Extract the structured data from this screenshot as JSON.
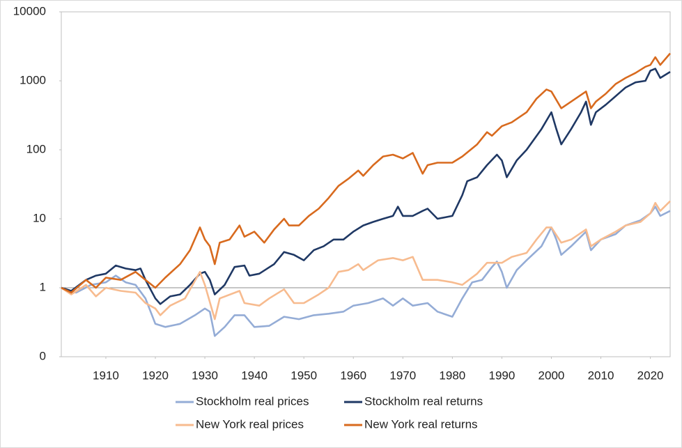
{
  "chart_data": {
    "type": "line",
    "log_scale_y": true,
    "reference_line": 1,
    "xlim": [
      1901,
      2024
    ],
    "xticks": [
      1910,
      1920,
      1930,
      1940,
      1950,
      1960,
      1970,
      1980,
      1990,
      2000,
      2010,
      2020
    ],
    "ylim": [
      0.1,
      10000
    ],
    "yticks": [
      {
        "value": 0.1,
        "label": "0"
      },
      1,
      10,
      100,
      1000,
      10000
    ],
    "series": [
      {
        "name": "Stockholm real prices",
        "color": "#94acd6",
        "x": [
          1901,
          1904,
          1907,
          1910,
          1912,
          1914,
          1916,
          1918,
          1920,
          1922,
          1925,
          1928,
          1930,
          1931,
          1932,
          1934,
          1936,
          1938,
          1940,
          1943,
          1946,
          1949,
          1952,
          1955,
          1958,
          1960,
          1963,
          1966,
          1968,
          1970,
          1972,
          1975,
          1977,
          1980,
          1982,
          1984,
          1986,
          1988,
          1989,
          1990,
          1991,
          1993,
          1995,
          1998,
          2000,
          2001,
          2002,
          2004,
          2007,
          2008,
          2010,
          2013,
          2015,
          2018,
          2020,
          2021,
          2022,
          2024
        ],
        "values": [
          1,
          0.85,
          1.1,
          1.2,
          1.5,
          1.2,
          1.1,
          0.7,
          0.3,
          0.27,
          0.3,
          0.4,
          0.5,
          0.45,
          0.2,
          0.27,
          0.4,
          0.4,
          0.27,
          0.28,
          0.38,
          0.35,
          0.4,
          0.42,
          0.45,
          0.55,
          0.6,
          0.7,
          0.55,
          0.7,
          0.55,
          0.6,
          0.45,
          0.38,
          0.7,
          1.2,
          1.3,
          2.0,
          2.4,
          1.7,
          1.0,
          1.8,
          2.5,
          4.0,
          7.5,
          5,
          3,
          4,
          6.5,
          3.5,
          5,
          6,
          8,
          9.5,
          12,
          15,
          11,
          13
        ]
      },
      {
        "name": "Stockholm real returns",
        "color": "#1f3864",
        "x": [
          1901,
          1903,
          1906,
          1908,
          1910,
          1912,
          1914,
          1916,
          1917,
          1918,
          1920,
          1921,
          1923,
          1925,
          1927,
          1929,
          1930,
          1931,
          1932,
          1934,
          1936,
          1938,
          1939,
          1941,
          1944,
          1946,
          1948,
          1950,
          1952,
          1954,
          1956,
          1958,
          1960,
          1962,
          1964,
          1966,
          1968,
          1969,
          1970,
          1972,
          1974,
          1975,
          1977,
          1980,
          1982,
          1983,
          1985,
          1987,
          1989,
          1990,
          1991,
          1993,
          1995,
          1998,
          2000,
          2001,
          2002,
          2004,
          2006,
          2007,
          2008,
          2009,
          2011,
          2013,
          2015,
          2017,
          2019,
          2020,
          2021,
          2022,
          2024
        ],
        "values": [
          1,
          0.9,
          1.3,
          1.5,
          1.6,
          2.1,
          1.9,
          1.8,
          1.9,
          1.3,
          0.7,
          0.58,
          0.75,
          0.8,
          1.1,
          1.6,
          1.7,
          1.3,
          0.8,
          1.1,
          2.0,
          2.1,
          1.5,
          1.6,
          2.2,
          3.3,
          3.0,
          2.5,
          3.5,
          4.0,
          5,
          5,
          6.5,
          8,
          9,
          10,
          11,
          15,
          11,
          11,
          13,
          14,
          10,
          11,
          22,
          35,
          40,
          60,
          85,
          70,
          40,
          70,
          100,
          200,
          350,
          200,
          120,
          200,
          350,
          500,
          230,
          350,
          450,
          600,
          800,
          950,
          1000,
          1400,
          1500,
          1100,
          1350
        ]
      },
      {
        "name": "New York real prices",
        "color": "#f7bb8f",
        "x": [
          1901,
          1903,
          1906,
          1908,
          1910,
          1913,
          1916,
          1918,
          1920,
          1921,
          1923,
          1926,
          1929,
          1930,
          1932,
          1933,
          1937,
          1938,
          1941,
          1943,
          1946,
          1948,
          1950,
          1953,
          1955,
          1957,
          1959,
          1961,
          1962,
          1965,
          1968,
          1970,
          1972,
          1974,
          1977,
          1980,
          1982,
          1985,
          1987,
          1990,
          1992,
          1995,
          1997,
          1999,
          2000,
          2002,
          2004,
          2007,
          2008,
          2010,
          2013,
          2015,
          2018,
          2020,
          2021,
          2022,
          2024
        ],
        "values": [
          1,
          0.8,
          1.1,
          0.75,
          1.0,
          0.9,
          0.85,
          0.6,
          0.5,
          0.4,
          0.55,
          0.7,
          1.7,
          1.1,
          0.35,
          0.7,
          0.9,
          0.6,
          0.55,
          0.7,
          0.95,
          0.6,
          0.6,
          0.8,
          1.0,
          1.7,
          1.8,
          2.2,
          1.8,
          2.5,
          2.7,
          2.5,
          2.8,
          1.3,
          1.3,
          1.2,
          1.1,
          1.6,
          2.3,
          2.3,
          2.8,
          3.2,
          5,
          7.5,
          7.5,
          4.5,
          5,
          7,
          4,
          5,
          6.5,
          8,
          9,
          12,
          17,
          13,
          18
        ]
      },
      {
        "name": "New York real returns",
        "color": "#d86a1e",
        "x": [
          1901,
          1903,
          1906,
          1908,
          1910,
          1913,
          1916,
          1918,
          1920,
          1922,
          1925,
          1927,
          1929,
          1930,
          1931,
          1932,
          1933,
          1935,
          1937,
          1938,
          1940,
          1942,
          1944,
          1946,
          1947,
          1949,
          1951,
          1953,
          1955,
          1957,
          1959,
          1961,
          1962,
          1964,
          1966,
          1968,
          1970,
          1972,
          1974,
          1975,
          1977,
          1980,
          1982,
          1985,
          1987,
          1988,
          1990,
          1992,
          1995,
          1997,
          1999,
          2000,
          2002,
          2004,
          2007,
          2008,
          2009,
          2011,
          2013,
          2015,
          2017,
          2019,
          2020,
          2021,
          2022,
          2024
        ],
        "values": [
          1,
          0.85,
          1.3,
          1.0,
          1.4,
          1.3,
          1.7,
          1.3,
          1.0,
          1.4,
          2.2,
          3.5,
          7.5,
          5,
          4,
          2.2,
          4.5,
          5,
          8,
          5.5,
          6.5,
          4.5,
          7,
          10,
          8,
          8,
          11,
          14,
          20,
          30,
          38,
          50,
          42,
          60,
          80,
          85,
          75,
          90,
          45,
          60,
          65,
          65,
          80,
          120,
          180,
          160,
          220,
          250,
          350,
          550,
          750,
          700,
          400,
          500,
          700,
          400,
          500,
          650,
          900,
          1100,
          1300,
          1600,
          1700,
          2200,
          1700,
          2500
        ]
      }
    ]
  }
}
